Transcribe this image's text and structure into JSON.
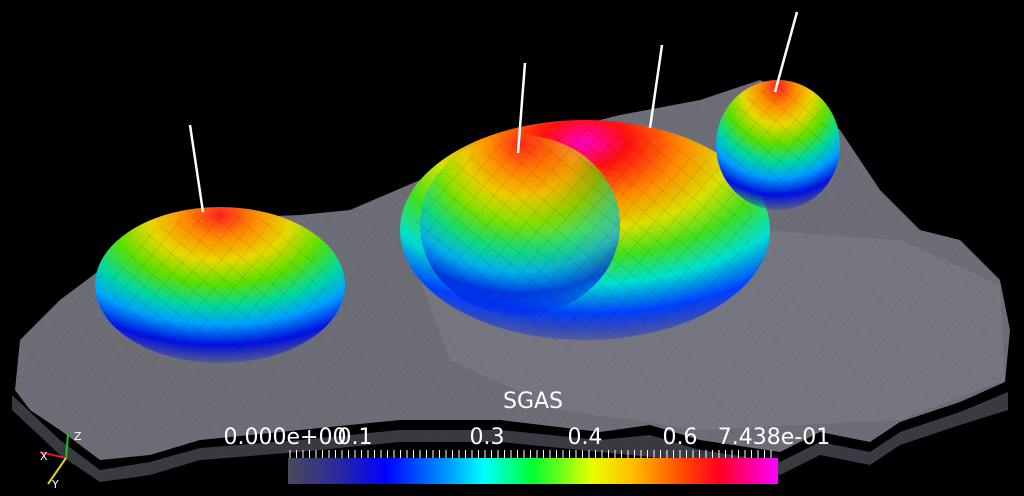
{
  "colorbar": {
    "title": "SGAS",
    "labels": [
      "0.000e+00",
      "0.1",
      "0.3",
      "0.4",
      "0.6",
      "7.438e-01"
    ]
  },
  "axes": {
    "x": "X",
    "y": "Y",
    "z": "Z"
  }
}
